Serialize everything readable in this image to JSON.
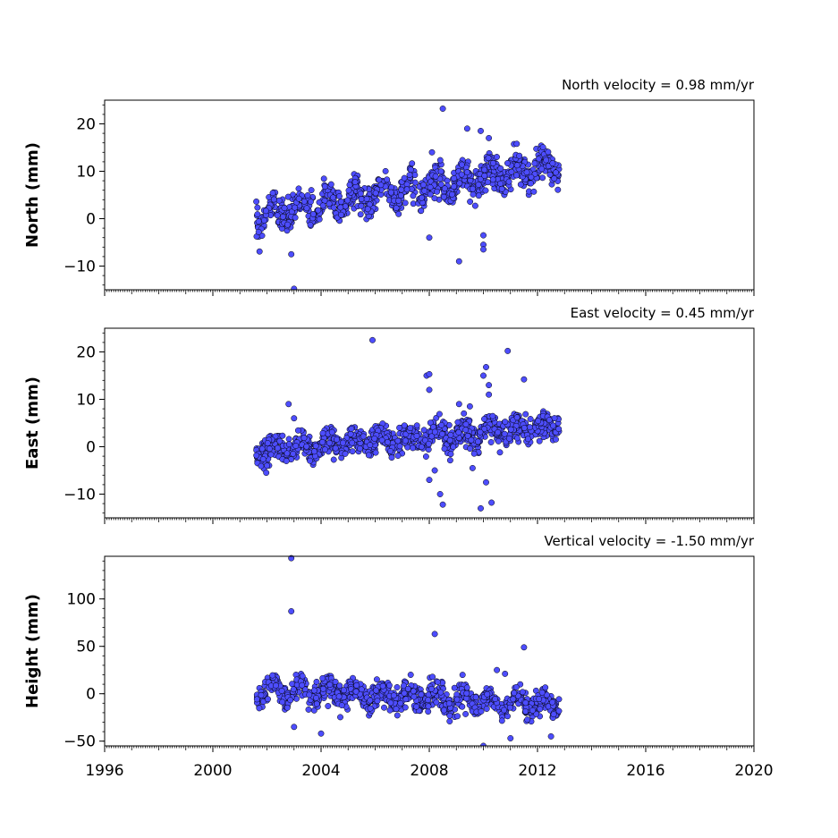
{
  "chart_data": [
    {
      "type": "scatter",
      "title": "North velocity = 0.98 mm/yr",
      "ylabel": "North (mm)",
      "xlabel": "",
      "xlim": [
        1996,
        2020
      ],
      "ylim": [
        -15,
        25
      ],
      "yticks": [
        -10,
        0,
        10,
        20
      ],
      "ytick_labels": [
        "−10",
        "0",
        "10",
        "20"
      ],
      "show_xtick_labels": false,
      "series_color": "#4d4dff",
      "edge_color": "#000000",
      "grid": false,
      "trend": {
        "start_year": 2001.6,
        "end_year": 2012.8,
        "start_value": 0.5,
        "slope_per_year": 0.98,
        "scatter": 1.6,
        "seasonal_amplitude": 2.0
      },
      "outliers": [
        [
          2002.9,
          -7.5
        ],
        [
          2003.0,
          -14.8
        ],
        [
          2008.0,
          -4.0
        ],
        [
          2008.5,
          23.2
        ],
        [
          2009.1,
          -9.0
        ],
        [
          2009.4,
          19.0
        ],
        [
          2009.9,
          18.5
        ],
        [
          2010.0,
          -3.5
        ],
        [
          2010.0,
          -5.5
        ],
        [
          2010.0,
          -6.5
        ],
        [
          2008.1,
          14.0
        ],
        [
          2010.2,
          17.0
        ]
      ]
    },
    {
      "type": "scatter",
      "title": "East velocity = 0.45 mm/yr",
      "ylabel": "East (mm)",
      "xlabel": "",
      "xlim": [
        1996,
        2020
      ],
      "ylim": [
        -15,
        25
      ],
      "yticks": [
        -10,
        0,
        10,
        20
      ],
      "ytick_labels": [
        "−10",
        "0",
        "10",
        "20"
      ],
      "show_xtick_labels": false,
      "series_color": "#4d4dff",
      "edge_color": "#000000",
      "grid": false,
      "trend": {
        "start_year": 2001.6,
        "end_year": 2012.8,
        "start_value": -0.8,
        "slope_per_year": 0.45,
        "scatter": 1.4,
        "seasonal_amplitude": 1.2
      },
      "outliers": [
        [
          2002.8,
          9.0
        ],
        [
          2003.0,
          6.0
        ],
        [
          2005.9,
          22.5
        ],
        [
          2007.9,
          15.0
        ],
        [
          2008.0,
          15.3
        ],
        [
          2008.0,
          12.0
        ],
        [
          2008.0,
          -7.0
        ],
        [
          2008.2,
          -5.0
        ],
        [
          2008.4,
          -10.0
        ],
        [
          2008.5,
          -12.2
        ],
        [
          2009.1,
          9.0
        ],
        [
          2009.5,
          8.5
        ],
        [
          2009.6,
          -4.5
        ],
        [
          2009.9,
          -13.0
        ],
        [
          2010.0,
          15.0
        ],
        [
          2010.1,
          16.8
        ],
        [
          2010.2,
          13.0
        ],
        [
          2010.2,
          11.0
        ],
        [
          2010.3,
          -11.8
        ],
        [
          2010.1,
          -7.5
        ],
        [
          2010.9,
          20.2
        ],
        [
          2011.5,
          14.2
        ]
      ]
    },
    {
      "type": "scatter",
      "title": "Vertical velocity = -1.50 mm/yr",
      "ylabel": "Height (mm)",
      "xlabel": "",
      "xlim": [
        1996,
        2020
      ],
      "ylim": [
        -55,
        145
      ],
      "yticks": [
        -50,
        0,
        50,
        100
      ],
      "ytick_labels": [
        "−50",
        "0",
        "50",
        "100"
      ],
      "xticks": [
        1996,
        2000,
        2004,
        2008,
        2012,
        2016,
        2020
      ],
      "xtick_labels": [
        "1996",
        "2000",
        "2004",
        "2008",
        "2012",
        "2016",
        "2020"
      ],
      "show_xtick_labels": true,
      "series_color": "#4d4dff",
      "edge_color": "#000000",
      "grid": false,
      "trend": {
        "start_year": 2001.6,
        "end_year": 2012.8,
        "start_value": 5.0,
        "slope_per_year": -1.5,
        "scatter": 6.5,
        "seasonal_amplitude": 8.0
      },
      "outliers": [
        [
          2002.9,
          143.0
        ],
        [
          2002.9,
          87.0
        ],
        [
          2008.2,
          63.0
        ],
        [
          2010.5,
          25.0
        ],
        [
          2010.8,
          21.0
        ],
        [
          2011.5,
          49.0
        ],
        [
          2010.0,
          -55.0
        ],
        [
          2011.0,
          -47.0
        ],
        [
          2012.5,
          -45.0
        ],
        [
          2003.0,
          -35.0
        ],
        [
          2004.0,
          -42.0
        ]
      ]
    }
  ]
}
